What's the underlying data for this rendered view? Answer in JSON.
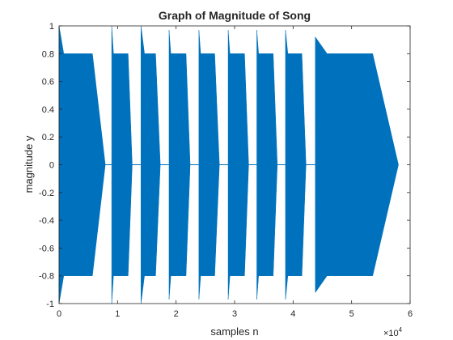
{
  "chart_data": {
    "type": "area",
    "title": "Graph of Magnitude of Song",
    "xlabel": "samples n",
    "ylabel": "magnitude y",
    "x_multiplier": "×10",
    "x_multiplier_exp": "4",
    "xlim": [
      0,
      60000
    ],
    "ylim": [
      -1,
      1
    ],
    "grid": false,
    "x_ticks": [
      0,
      10000,
      20000,
      30000,
      40000,
      50000,
      60000
    ],
    "x_tick_labels": [
      "0",
      "1",
      "2",
      "3",
      "4",
      "5",
      "6"
    ],
    "y_ticks": [
      1,
      0.8,
      0.6,
      0.4,
      0.2,
      0,
      -0.2,
      -0.4,
      -0.6,
      -0.8,
      -1
    ],
    "y_tick_labels": [
      "1",
      "0.8",
      "0.6",
      "0.4",
      "0.2",
      "0",
      "-0.2",
      "-0.4",
      "-0.6",
      "-0.8",
      "-1"
    ],
    "series_color": "#0072BD",
    "notes": [
      {
        "start": 0,
        "attack_end": 800,
        "sustain_end": 5700,
        "end": 7900,
        "peak": 1.0,
        "sustain": 0.8
      },
      {
        "start": 9000,
        "attack_end": 9300,
        "sustain_end": 11800,
        "end": 12500,
        "peak": 1.0,
        "sustain": 0.8
      },
      {
        "start": 14000,
        "attack_end": 14600,
        "sustain_end": 16500,
        "end": 17300,
        "peak": 1.0,
        "sustain": 0.8
      },
      {
        "start": 18800,
        "attack_end": 19100,
        "sustain_end": 21700,
        "end": 22400,
        "peak": 0.97,
        "sustain": 0.8
      },
      {
        "start": 23900,
        "attack_end": 24200,
        "sustain_end": 26600,
        "end": 27400,
        "peak": 0.97,
        "sustain": 0.8
      },
      {
        "start": 28900,
        "attack_end": 29200,
        "sustain_end": 31700,
        "end": 32400,
        "peak": 0.97,
        "sustain": 0.8
      },
      {
        "start": 33800,
        "attack_end": 34100,
        "sustain_end": 36600,
        "end": 37300,
        "peak": 0.97,
        "sustain": 0.8
      },
      {
        "start": 38700,
        "attack_end": 39100,
        "sustain_end": 41500,
        "end": 42200,
        "peak": 0.97,
        "sustain": 0.8
      },
      {
        "start": 43800,
        "attack_end": 45800,
        "sustain_end": 53600,
        "end": 58000,
        "peak": 0.92,
        "sustain": 0.8
      }
    ]
  }
}
